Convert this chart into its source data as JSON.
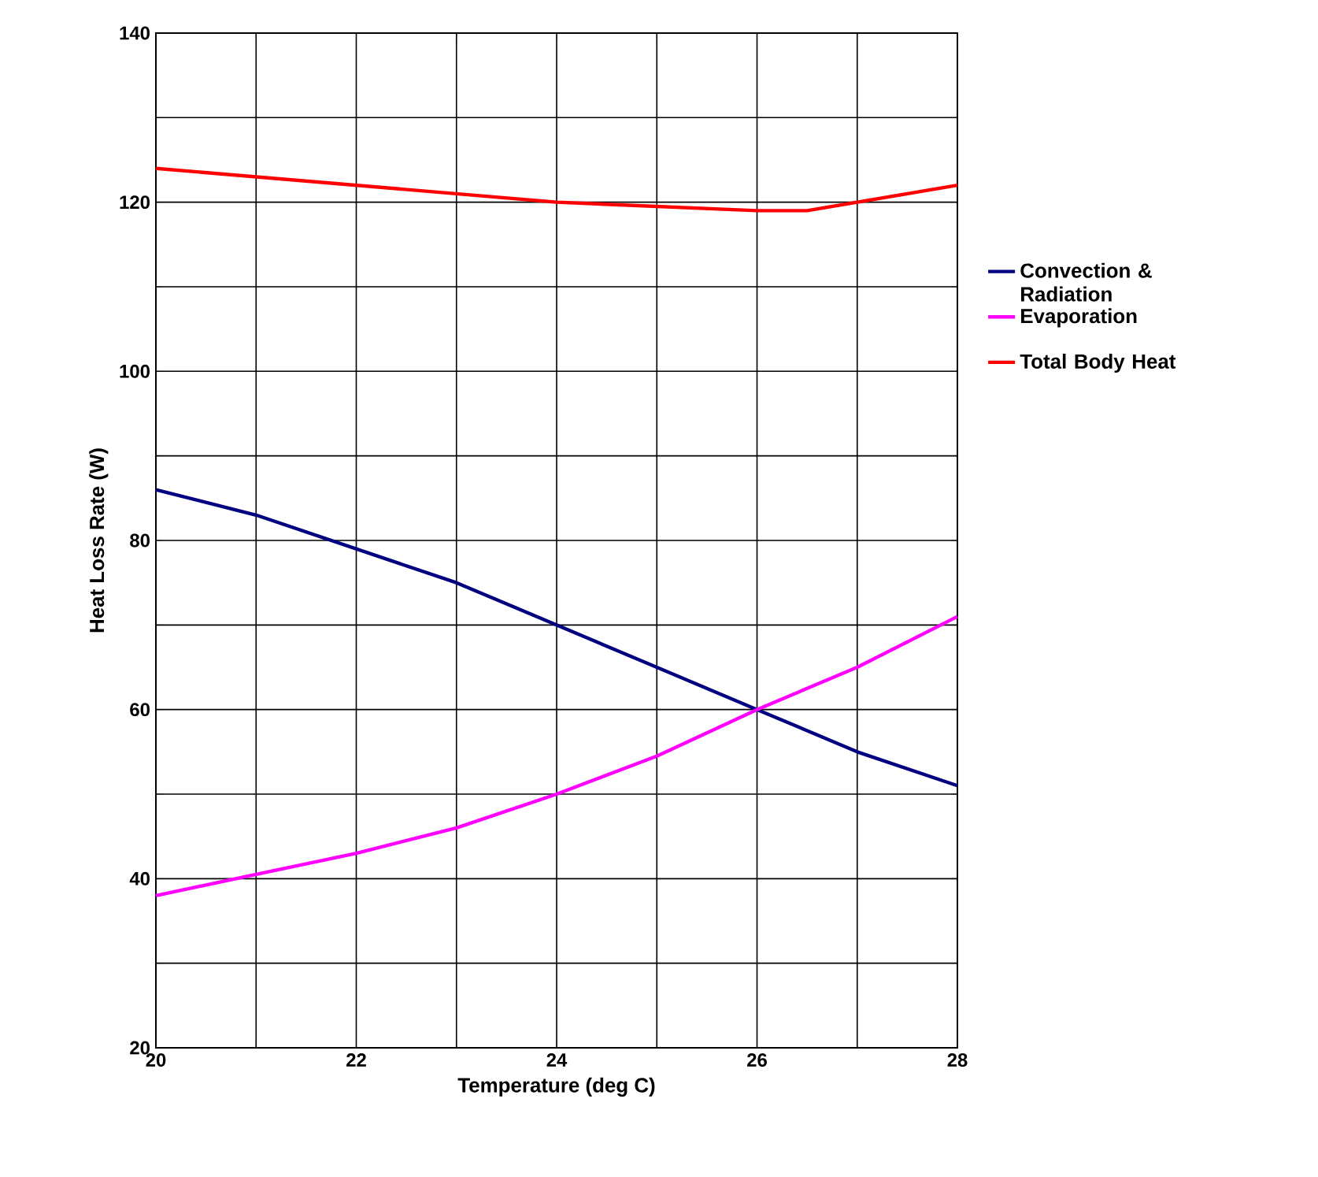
{
  "chart_data": {
    "type": "line",
    "xlabel": "Temperature (deg C)",
    "ylabel": "Heat Loss Rate (W)",
    "xlim": [
      20,
      28
    ],
    "ylim": [
      20,
      140
    ],
    "xticks": [
      20,
      {
        "value": 21,
        "label": null
      },
      22,
      {
        "value": 23,
        "label": null
      },
      24,
      {
        "value": 25,
        "label": null
      },
      26,
      {
        "value": 27,
        "label": null
      },
      28
    ],
    "yticks": [
      20,
      {
        "value": 30,
        "label": null
      },
      40,
      {
        "value": 50,
        "label": null
      },
      60,
      {
        "value": 70,
        "label": null
      },
      80,
      {
        "value": 90,
        "label": null
      },
      100,
      {
        "value": 110,
        "label": null
      },
      120,
      {
        "value": 130,
        "label": null
      },
      140
    ],
    "grid": true,
    "legend": "right",
    "marker": "none",
    "line_style": "solid",
    "series": [
      {
        "name": "Convection & Radiation",
        "color": "#000080",
        "x": [
          20,
          21,
          22,
          23,
          24,
          25,
          26,
          27,
          28
        ],
        "values": [
          86,
          83,
          79,
          75,
          70,
          65,
          60,
          55,
          51
        ]
      },
      {
        "name": "Evaporation",
        "color": "#ff00ff",
        "x": [
          20,
          21,
          22,
          23,
          24,
          25,
          26,
          27,
          28
        ],
        "values": [
          38,
          40.5,
          43,
          46,
          50,
          54.5,
          60,
          65,
          71
        ]
      },
      {
        "name": "Total Body Heat",
        "color": "#ff0000",
        "x": [
          20,
          21,
          22,
          23,
          24,
          25,
          26,
          26.5,
          27,
          28
        ],
        "values": [
          124,
          123,
          122,
          121,
          120,
          119.5,
          119,
          119,
          120,
          122
        ]
      }
    ]
  }
}
